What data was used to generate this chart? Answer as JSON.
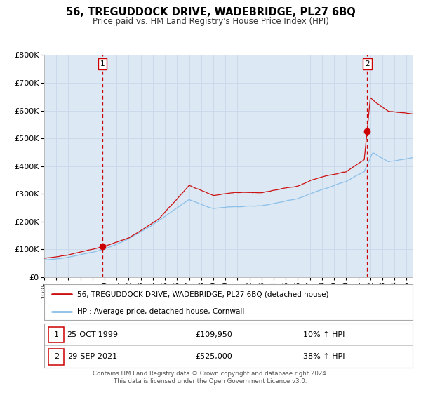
{
  "title": "56, TREGUDDOCK DRIVE, WADEBRIDGE, PL27 6BQ",
  "subtitle": "Price paid vs. HM Land Registry's House Price Index (HPI)",
  "background_color": "#dce9f5",
  "fig_bg_color": "#ffffff",
  "hpi_color": "#8bbfe8",
  "price_color": "#cc1111",
  "marker_color": "#cc0000",
  "dashed_line_color": "#cc0000",
  "grid_color": "#c8d8e8",
  "sale1_date": 1999.82,
  "sale1_price": 109950,
  "sale2_date": 2021.75,
  "sale2_price": 525000,
  "ylim_max": 800000,
  "ylim_min": 0,
  "xlim_min": 1995.0,
  "xlim_max": 2025.5,
  "legend_line1": "56, TREGUDDOCK DRIVE, WADEBRIDGE, PL27 6BQ (detached house)",
  "legend_line2": "HPI: Average price, detached house, Cornwall",
  "table_row1_num": "1",
  "table_row1_date": "25-OCT-1999",
  "table_row1_price": "£109,950",
  "table_row1_hpi": "10% ↑ HPI",
  "table_row2_num": "2",
  "table_row2_date": "29-SEP-2021",
  "table_row2_price": "£525,000",
  "table_row2_hpi": "38% ↑ HPI",
  "footer_line1": "Contains HM Land Registry data © Crown copyright and database right 2024.",
  "footer_line2": "This data is licensed under the Open Government Licence v3.0."
}
